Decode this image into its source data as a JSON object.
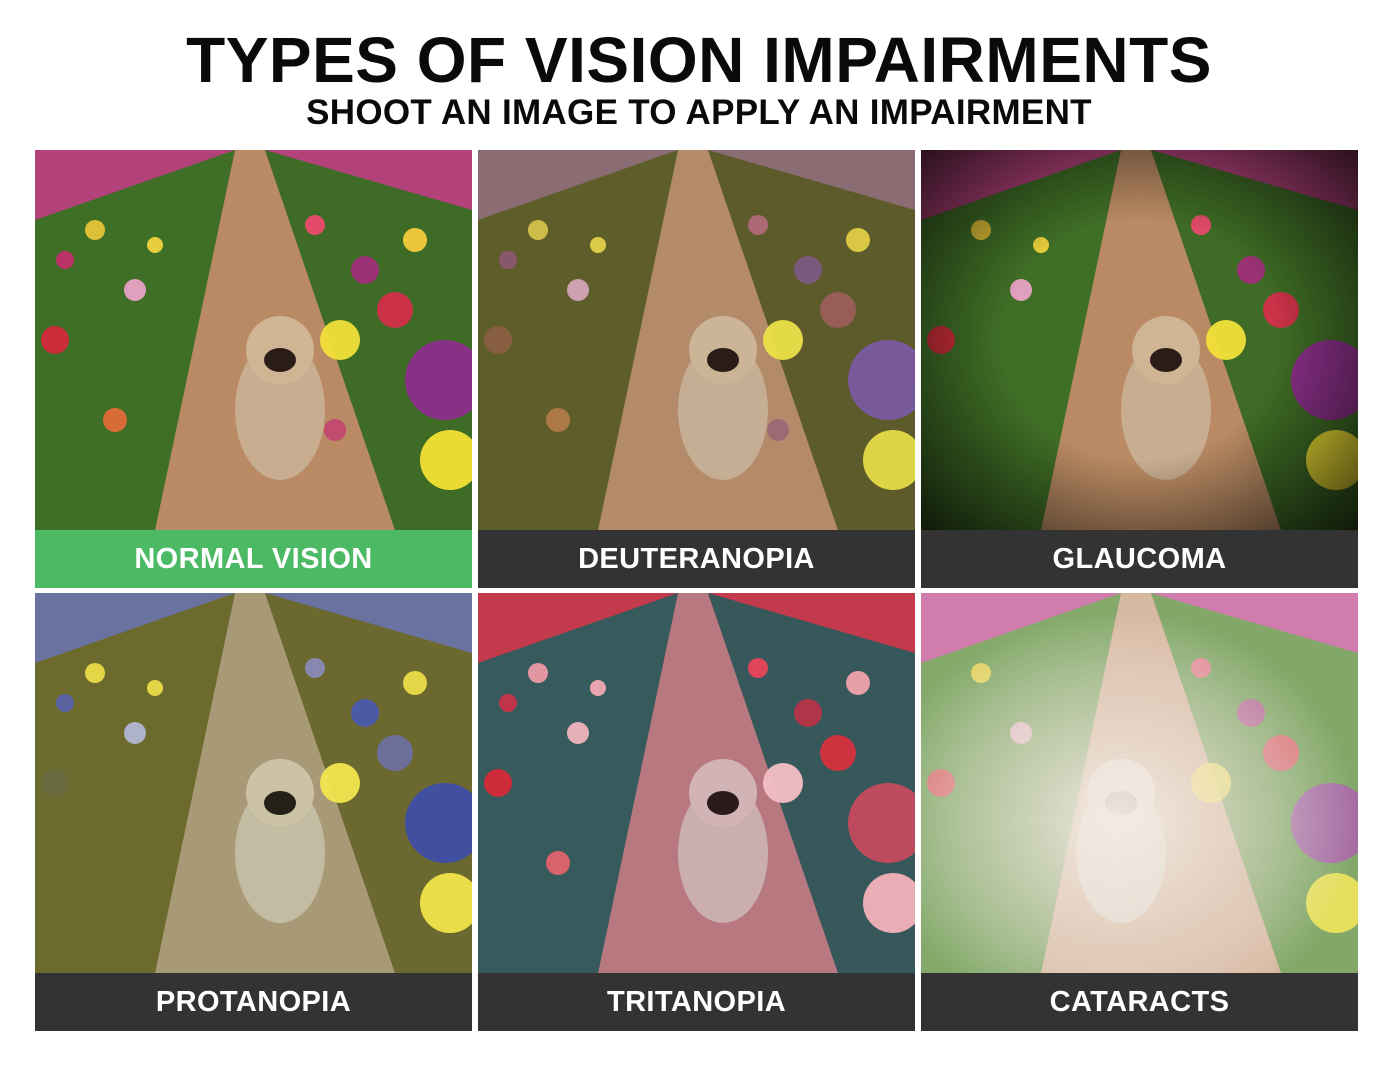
{
  "header": {
    "title": "TYPES OF VISION IMPAIRMENTS",
    "subtitle": "SHOOT AN IMAGE TO APPLY AN IMPAIRMENT"
  },
  "tiles": [
    {
      "label": "NORMAL VISION",
      "selected": true,
      "image": "tulip-field-pug-normal"
    },
    {
      "label": "DEUTERANOPIA",
      "selected": false,
      "image": "tulip-field-pug-deuteranopia"
    },
    {
      "label": "GLAUCOMA",
      "selected": false,
      "image": "tulip-field-pug-glaucoma"
    },
    {
      "label": "PROTANOPIA",
      "selected": false,
      "image": "tulip-field-pug-protanopia"
    },
    {
      "label": "TRITANOPIA",
      "selected": false,
      "image": "tulip-field-pug-tritanopia"
    },
    {
      "label": "CATARACTS",
      "selected": false,
      "image": "tulip-field-pug-cataracts"
    }
  ],
  "colors": {
    "selected_label_bg": "#4cb964",
    "label_bg": "#333333",
    "label_text": "#ffffff"
  }
}
